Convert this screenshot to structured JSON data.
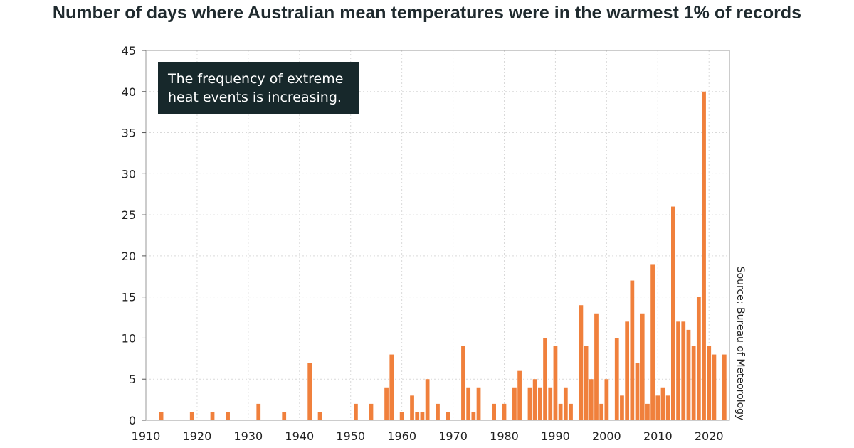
{
  "chart_data": {
    "type": "bar",
    "title": "Number of days where Australian mean temperatures were in the warmest 1% of records",
    "xlabel": "",
    "ylabel": "",
    "xlim": [
      1910,
      2024
    ],
    "ylim": [
      0,
      45
    ],
    "y_ticks": [
      0,
      5,
      10,
      15,
      20,
      25,
      30,
      35,
      40,
      45
    ],
    "x_ticks": [
      1910,
      1920,
      1930,
      1940,
      1950,
      1960,
      1970,
      1980,
      1990,
      2000,
      2010,
      2020
    ],
    "grid": true,
    "bar_color": "#f0803c",
    "annotation": [
      "The frequency of extreme",
      "heat events is increasing."
    ],
    "source": "Source: Bureau of Meteorology",
    "years": [
      1913,
      1919,
      1923,
      1926,
      1932,
      1937,
      1942,
      1944,
      1951,
      1954,
      1957,
      1958,
      1960,
      1962,
      1963,
      1964,
      1965,
      1967,
      1969,
      1972,
      1973,
      1974,
      1975,
      1978,
      1980,
      1982,
      1983,
      1985,
      1986,
      1987,
      1988,
      1989,
      1990,
      1991,
      1992,
      1993,
      1995,
      1996,
      1997,
      1998,
      1999,
      2000,
      2002,
      2003,
      2004,
      2005,
      2006,
      2007,
      2008,
      2009,
      2010,
      2011,
      2012,
      2013,
      2014,
      2015,
      2016,
      2017,
      2018,
      2019,
      2020,
      2021,
      2023
    ],
    "values": [
      1,
      1,
      1,
      1,
      2,
      1,
      7,
      1,
      2,
      2,
      4,
      8,
      1,
      3,
      1,
      1,
      5,
      2,
      1,
      9,
      4,
      1,
      4,
      2,
      2,
      4,
      6,
      4,
      5,
      4,
      10,
      4,
      9,
      2,
      4,
      2,
      14,
      9,
      5,
      13,
      2,
      5,
      10,
      3,
      12,
      17,
      7,
      13,
      2,
      19,
      3,
      4,
      3,
      26,
      12,
      12,
      11,
      9,
      15,
      40,
      9,
      8,
      8
    ]
  }
}
